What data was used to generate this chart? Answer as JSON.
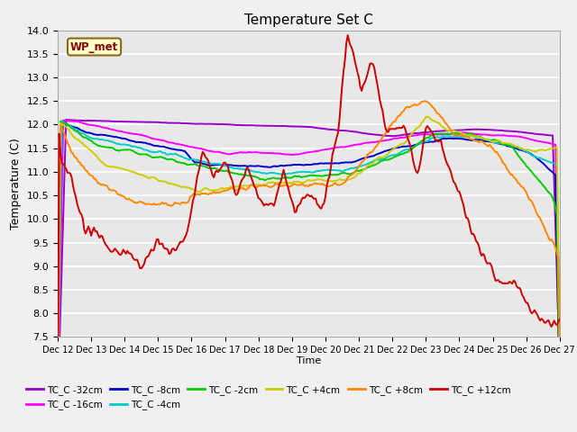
{
  "title": "Temperature Set C",
  "xlabel": "Time",
  "ylabel": "Temperature (C)",
  "ylim": [
    7.5,
    14.0
  ],
  "yticks": [
    7.5,
    8.0,
    8.5,
    9.0,
    9.5,
    10.0,
    10.5,
    11.0,
    11.5,
    12.0,
    12.5,
    13.0,
    13.5,
    14.0
  ],
  "x_labels": [
    "Dec 12",
    "Dec 13",
    "Dec 14",
    "Dec 15",
    "Dec 16",
    "Dec 17",
    "Dec 18",
    "Dec 19",
    "Dec 20",
    "Dec 21",
    "Dec 22",
    "Dec 23",
    "Dec 24",
    "Dec 25",
    "Dec 26",
    "Dec 27"
  ],
  "wp_met_label": "WP_met",
  "legend_entries": [
    {
      "label": "TC_C -32cm",
      "color": "#9900cc"
    },
    {
      "label": "TC_C -16cm",
      "color": "#ff00ff"
    },
    {
      "label": "TC_C -8cm",
      "color": "#0000cc"
    },
    {
      "label": "TC_C -4cm",
      "color": "#00cccc"
    },
    {
      "label": "TC_C -2cm",
      "color": "#00cc00"
    },
    {
      "label": "TC_C +4cm",
      "color": "#cccc00"
    },
    {
      "label": "TC_C +8cm",
      "color": "#ff8800"
    },
    {
      "label": "TC_C +12cm",
      "color": "#cc0000"
    }
  ],
  "fig_bg": "#f0f0f0",
  "plot_bg": "#e8e8e8",
  "grid_color": "#ffffff",
  "n_points": 361
}
